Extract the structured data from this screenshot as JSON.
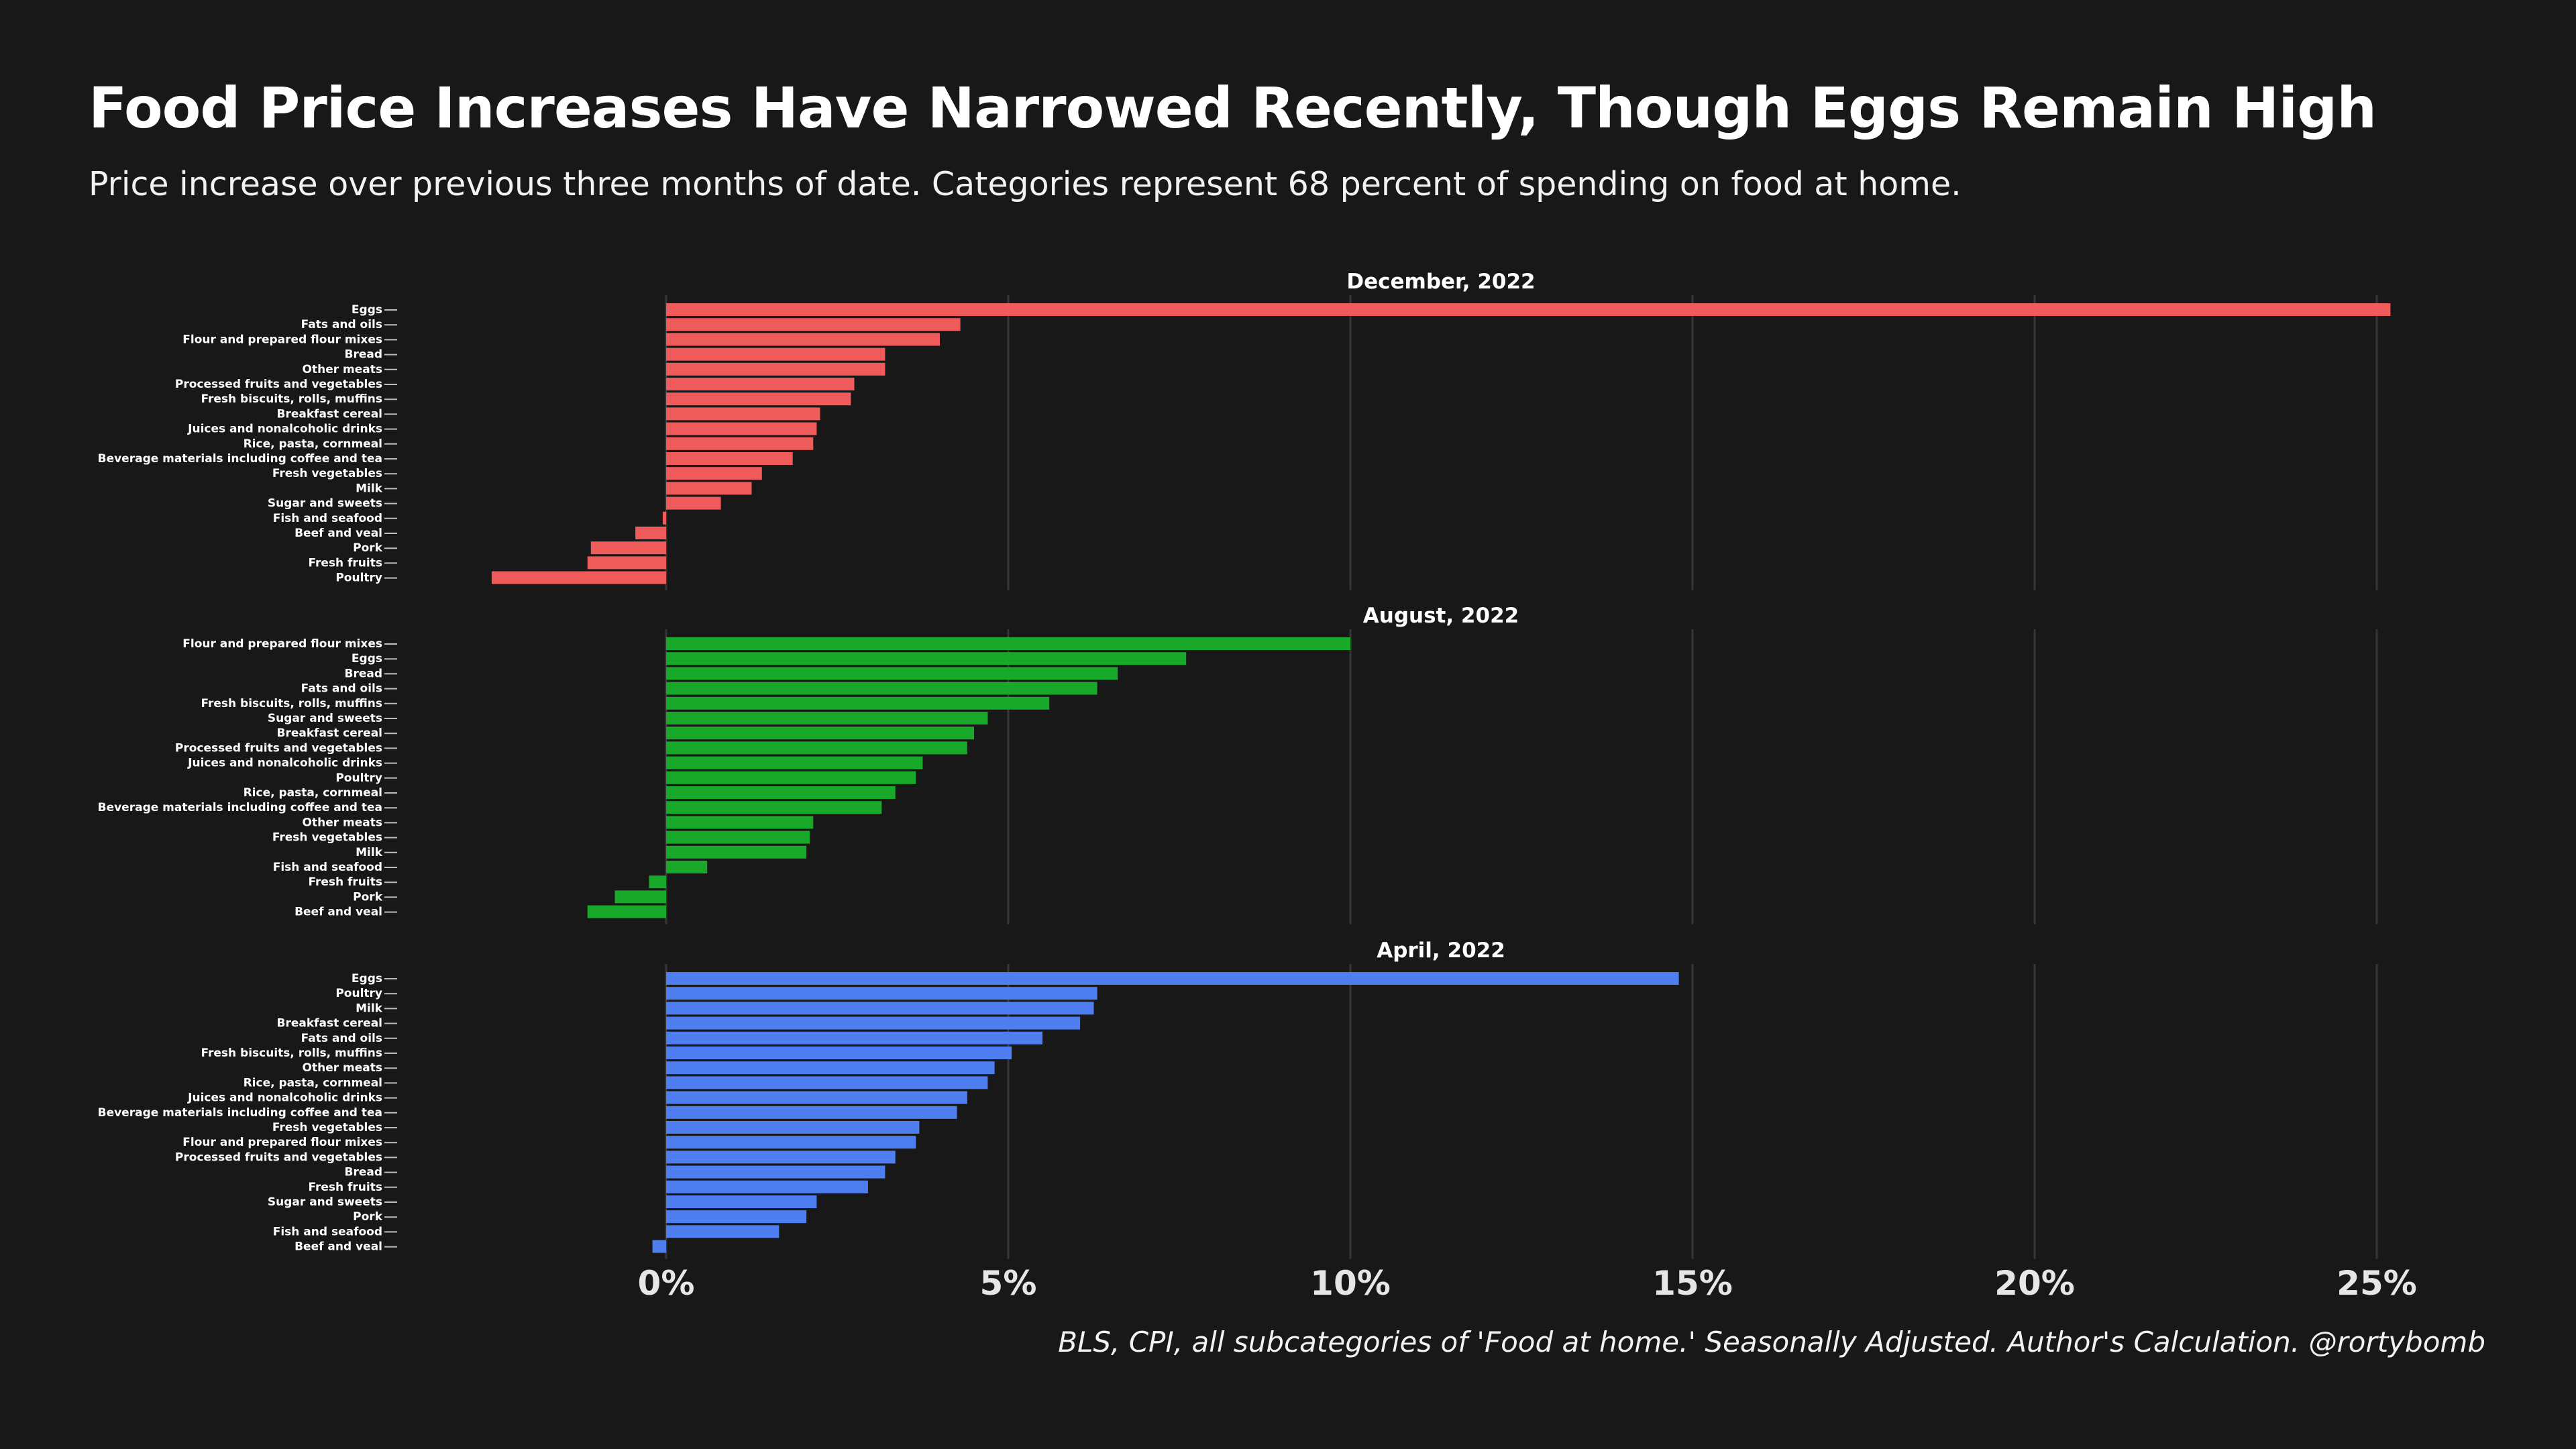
{
  "title": "Food Price Increases Have Narrowed Recently, Though Eggs Remain High",
  "subtitle": "Price increase over previous three months of date. Categories represent 68 percent of spending on food at home.",
  "caption": "BLS, CPI, all subcategories of 'Food at home.' Seasonally Adjusted. Author's Calculation. @rortybomb",
  "colors": {
    "background": "#181818",
    "text": "#ffffff",
    "grid": "#363636",
    "december": "#ef5a5a",
    "august": "#18a82a",
    "april": "#4f7ef0"
  },
  "chart_data": [
    {
      "type": "bar",
      "orientation": "horizontal",
      "facet_title": "December, 2022",
      "color": "#ef5a5a",
      "xlim": [
        -2.6,
        26.4
      ],
      "x_ticks": [
        0,
        5,
        10,
        15,
        20,
        25
      ],
      "x_tick_labels": [
        "0%",
        "5%",
        "10%",
        "15%",
        "20%",
        "25%"
      ],
      "grid": "vertical",
      "categories": [
        "Eggs",
        "Fats and oils",
        "Flour and prepared flour mixes",
        "Bread",
        "Other meats",
        "Processed fruits and vegetables",
        "Fresh biscuits, rolls, muffins",
        "Breakfast cereal",
        "Juices and nonalcoholic drinks",
        "Rice, pasta, cornmeal",
        "Beverage materials including coffee and tea",
        "Fresh vegetables",
        "Milk",
        "Sugar and sweets",
        "Fish and seafood",
        "Beef and veal",
        "Pork",
        "Fresh fruits",
        "Poultry"
      ],
      "values": [
        25.2,
        4.3,
        4.0,
        3.2,
        3.2,
        2.75,
        2.7,
        2.25,
        2.2,
        2.15,
        1.85,
        1.4,
        1.25,
        0.8,
        -0.05,
        -0.45,
        -1.1,
        -1.15,
        -2.55
      ]
    },
    {
      "type": "bar",
      "orientation": "horizontal",
      "facet_title": "August, 2022",
      "color": "#18a82a",
      "xlim": [
        -2.6,
        26.4
      ],
      "x_ticks": [
        0,
        5,
        10,
        15,
        20,
        25
      ],
      "x_tick_labels": [
        "0%",
        "5%",
        "10%",
        "15%",
        "20%",
        "25%"
      ],
      "grid": "vertical",
      "categories": [
        "Flour and prepared flour mixes",
        "Eggs",
        "Bread",
        "Fats and oils",
        "Fresh biscuits, rolls, muffins",
        "Sugar and sweets",
        "Breakfast cereal",
        "Processed fruits and vegetables",
        "Juices and nonalcoholic drinks",
        "Poultry",
        "Rice, pasta, cornmeal",
        "Beverage materials including coffee and tea",
        "Other meats",
        "Fresh vegetables",
        "Milk",
        "Fish and seafood",
        "Fresh fruits",
        "Pork",
        "Beef and veal"
      ],
      "values": [
        10.0,
        7.6,
        6.6,
        6.3,
        5.6,
        4.7,
        4.5,
        4.4,
        3.75,
        3.65,
        3.35,
        3.15,
        2.15,
        2.1,
        2.05,
        0.6,
        -0.25,
        -0.75,
        -1.15
      ]
    },
    {
      "type": "bar",
      "orientation": "horizontal",
      "facet_title": "April, 2022",
      "color": "#4f7ef0",
      "xlim": [
        -2.6,
        26.4
      ],
      "x_ticks": [
        0,
        5,
        10,
        15,
        20,
        25
      ],
      "x_tick_labels": [
        "0%",
        "5%",
        "10%",
        "15%",
        "20%",
        "25%"
      ],
      "grid": "vertical",
      "categories": [
        "Eggs",
        "Poultry",
        "Milk",
        "Breakfast cereal",
        "Fats and oils",
        "Fresh biscuits, rolls, muffins",
        "Other meats",
        "Rice, pasta, cornmeal",
        "Juices and nonalcoholic drinks",
        "Beverage materials including coffee and tea",
        "Fresh vegetables",
        "Flour and prepared flour mixes",
        "Processed fruits and vegetables",
        "Bread",
        "Fresh fruits",
        "Sugar and sweets",
        "Pork",
        "Fish and seafood",
        "Beef and veal"
      ],
      "values": [
        14.8,
        6.3,
        6.25,
        6.05,
        5.5,
        5.05,
        4.8,
        4.7,
        4.4,
        4.25,
        3.7,
        3.65,
        3.35,
        3.2,
        2.95,
        2.2,
        2.05,
        1.65,
        -0.2
      ]
    }
  ]
}
